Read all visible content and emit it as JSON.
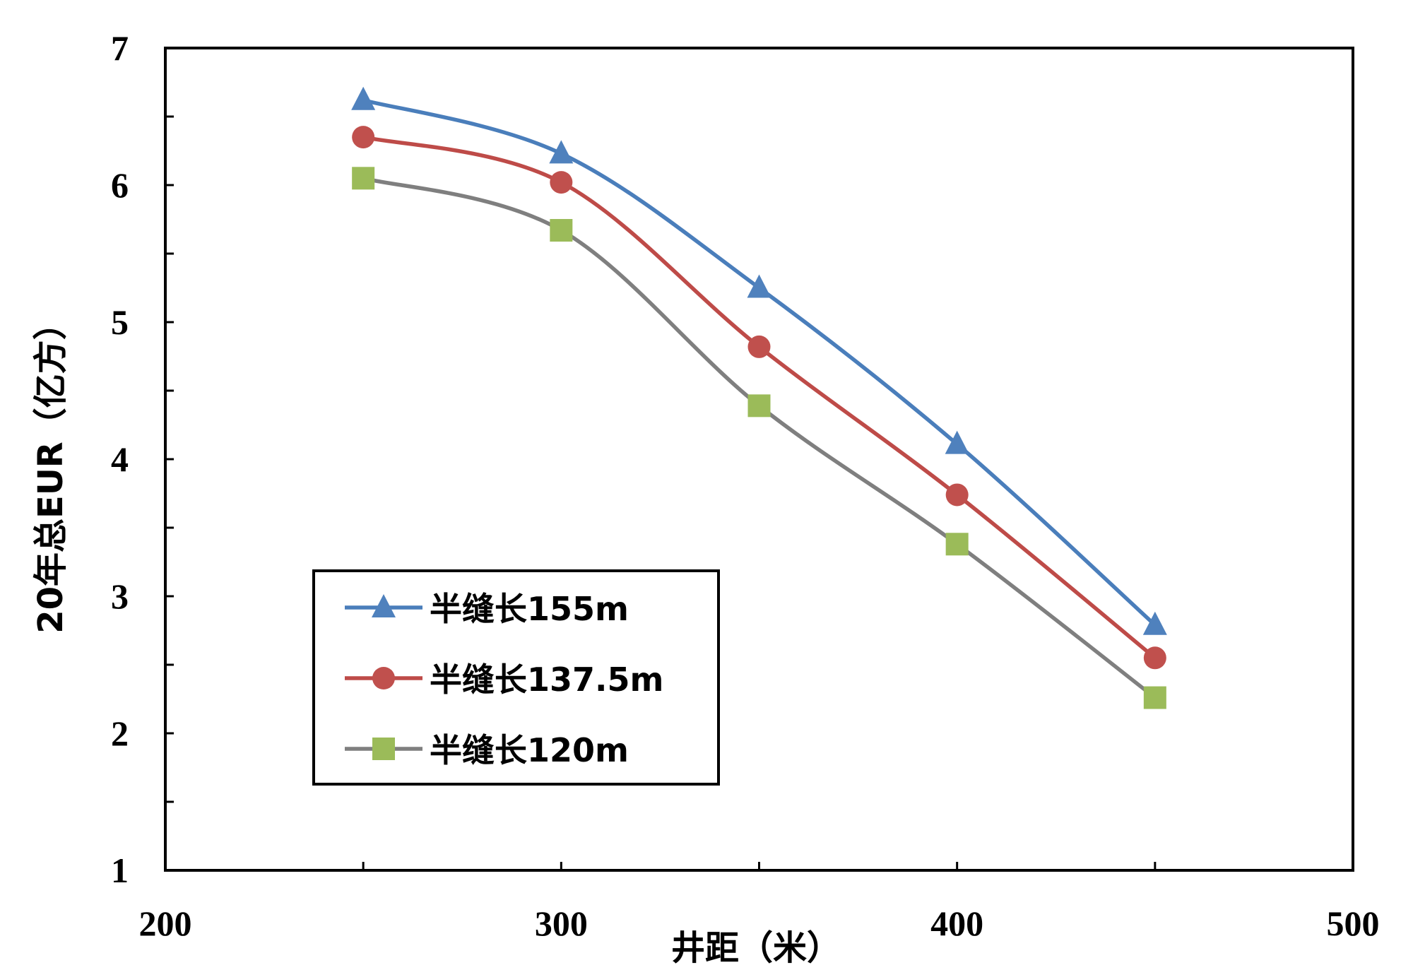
{
  "chart_data": {
    "type": "line",
    "title": "",
    "xlabel": "井距（米）",
    "ylabel": "20年总EUR（亿方）",
    "xlim": [
      200,
      500
    ],
    "ylim": [
      1,
      7
    ],
    "x_ticks": [
      {
        "value": 200,
        "label": "200"
      },
      {
        "value": 300,
        "label": "300"
      },
      {
        "value": 400,
        "label": "400"
      },
      {
        "value": 500,
        "label": "500"
      }
    ],
    "y_ticks": [
      {
        "value": 1,
        "label": "1"
      },
      {
        "value": 2,
        "label": "2"
      },
      {
        "value": 3,
        "label": "3"
      },
      {
        "value": 4,
        "label": "4"
      },
      {
        "value": 5,
        "label": "5"
      },
      {
        "value": 6,
        "label": "6"
      },
      {
        "value": 7,
        "label": "7"
      }
    ],
    "x_minor_ticks": [
      250,
      300,
      350,
      400,
      450
    ],
    "y_minor_ticks": [
      1.5,
      2.5,
      3.5,
      4.5,
      5.5,
      6.5
    ],
    "grid": false,
    "legend_position": "lower-left",
    "x": [
      250,
      300,
      350,
      400,
      450
    ],
    "series": [
      {
        "name": "半缝长155m",
        "marker": "triangle",
        "color": "#4A7EBB",
        "marker_color": "#4F81BD",
        "values": [
          6.62,
          6.23,
          5.25,
          4.11,
          2.79
        ]
      },
      {
        "name": "半缝长137.5m",
        "marker": "circle",
        "color": "#BE4B48",
        "marker_color": "#C0504D",
        "values": [
          6.35,
          6.02,
          4.82,
          3.74,
          2.55
        ]
      },
      {
        "name": "半缝长120m",
        "marker": "square",
        "color": "#7F7F7F",
        "marker_color": "#9BBB59",
        "values": [
          6.05,
          5.67,
          4.39,
          3.38,
          2.26
        ]
      }
    ]
  }
}
